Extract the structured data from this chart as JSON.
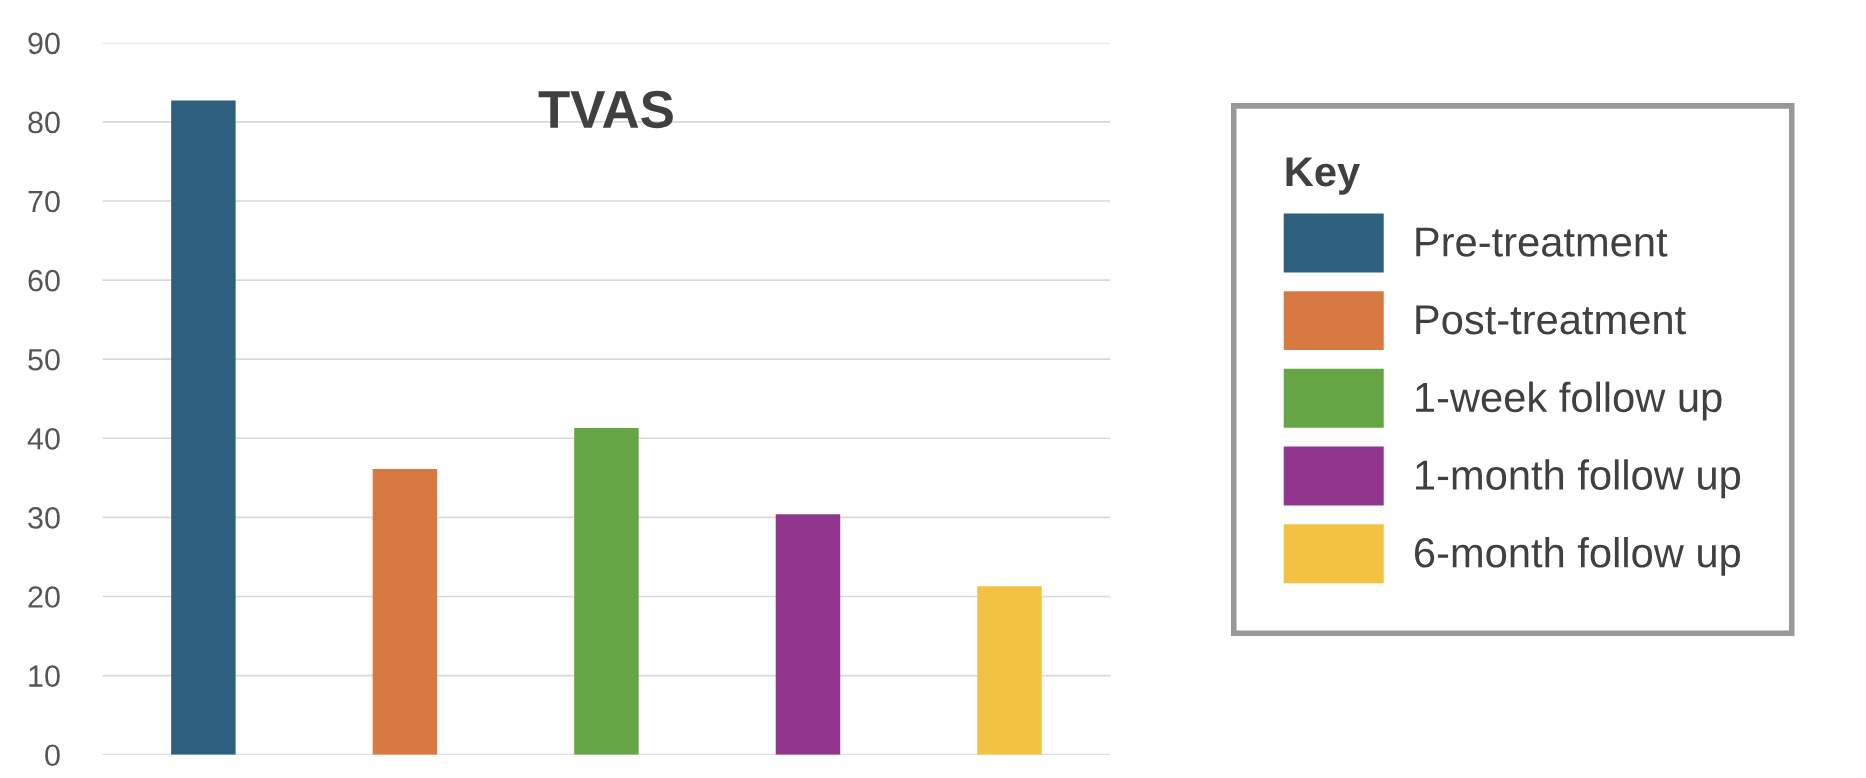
{
  "chart_data": {
    "type": "bar",
    "title": "TVAS",
    "categories": [
      null,
      null,
      null,
      null,
      null
    ],
    "series": [
      {
        "name": "Pre-treatment",
        "color": "#2e5f7f",
        "values": [
          82.7,
          null,
          null,
          null,
          null
        ]
      },
      {
        "name": "Post-treatment",
        "color": "#d97942",
        "values": [
          null,
          36.1,
          null,
          null,
          null
        ]
      },
      {
        "name": "1-week follow up",
        "color": "#65a543",
        "values": [
          null,
          null,
          41.3,
          null,
          null
        ]
      },
      {
        "name": "1-month follow up",
        "color": "#92358c",
        "values": [
          null,
          null,
          null,
          30.4,
          null
        ]
      },
      {
        "name": "6-month follow up",
        "color": "#f3c242",
        "values": [
          null,
          null,
          null,
          null,
          21.3
        ]
      }
    ],
    "ylim": [
      0,
      90
    ],
    "yticks": [
      0,
      10,
      20,
      30,
      40,
      50,
      60,
      70,
      80,
      90
    ],
    "grid": "y",
    "legend": "right",
    "legend_title": "Key"
  }
}
